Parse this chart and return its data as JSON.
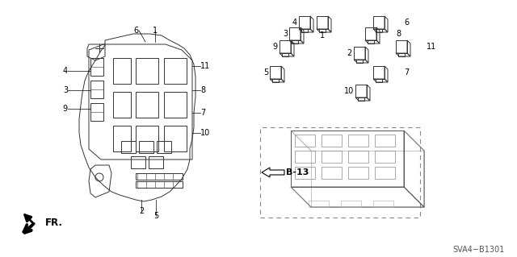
{
  "bg_color": "#ffffff",
  "title_text": "SVA4−B1301",
  "fr_label": "FR.",
  "b13_label": "B-13",
  "font_size_label": 7,
  "font_size_title": 7,
  "line_color": "#333333",
  "gray": "#777777"
}
